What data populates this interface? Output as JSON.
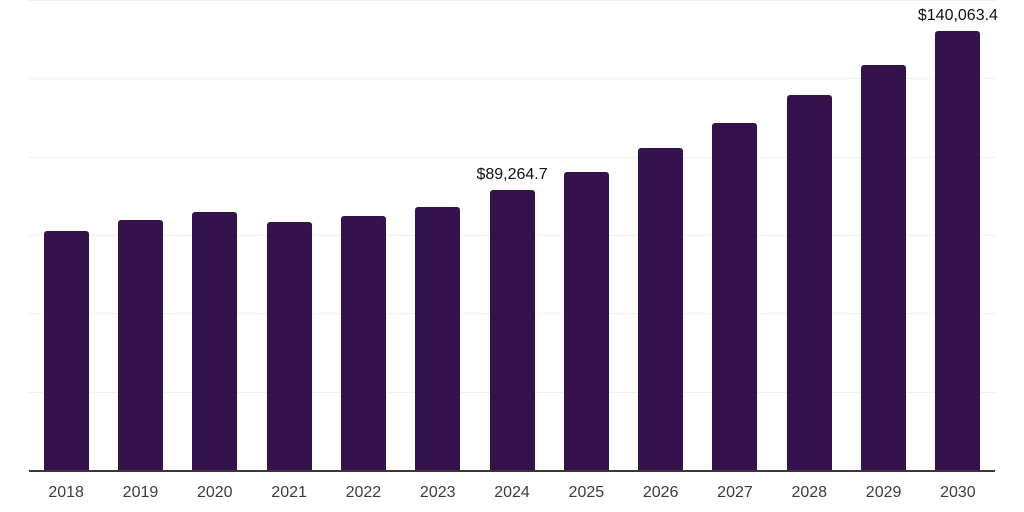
{
  "chart_data": {
    "type": "bar",
    "title": "",
    "xlabel": "",
    "ylabel": "",
    "categories": [
      "2018",
      "2019",
      "2020",
      "2021",
      "2022",
      "2023",
      "2024",
      "2025",
      "2026",
      "2027",
      "2028",
      "2029",
      "2030"
    ],
    "values": [
      76300,
      79700,
      82500,
      79000,
      81100,
      84100,
      89264.7,
      95200,
      102900,
      110600,
      119600,
      129400,
      140063.4
    ],
    "data_labels": {
      "2024": "$89,264.7",
      "2030": "$140,063.4"
    },
    "ylim": [
      0,
      150000
    ],
    "gridline_interval": 25000,
    "grid": "horizontal",
    "y_tick_labels_visible": false,
    "legend": "none",
    "colors": {
      "bar": "#34124B",
      "axis_line": "#383838",
      "gridline": "#f0f0f0",
      "category_label": "#3c3c3c",
      "data_label": "#111111",
      "background": "#ffffff"
    }
  }
}
